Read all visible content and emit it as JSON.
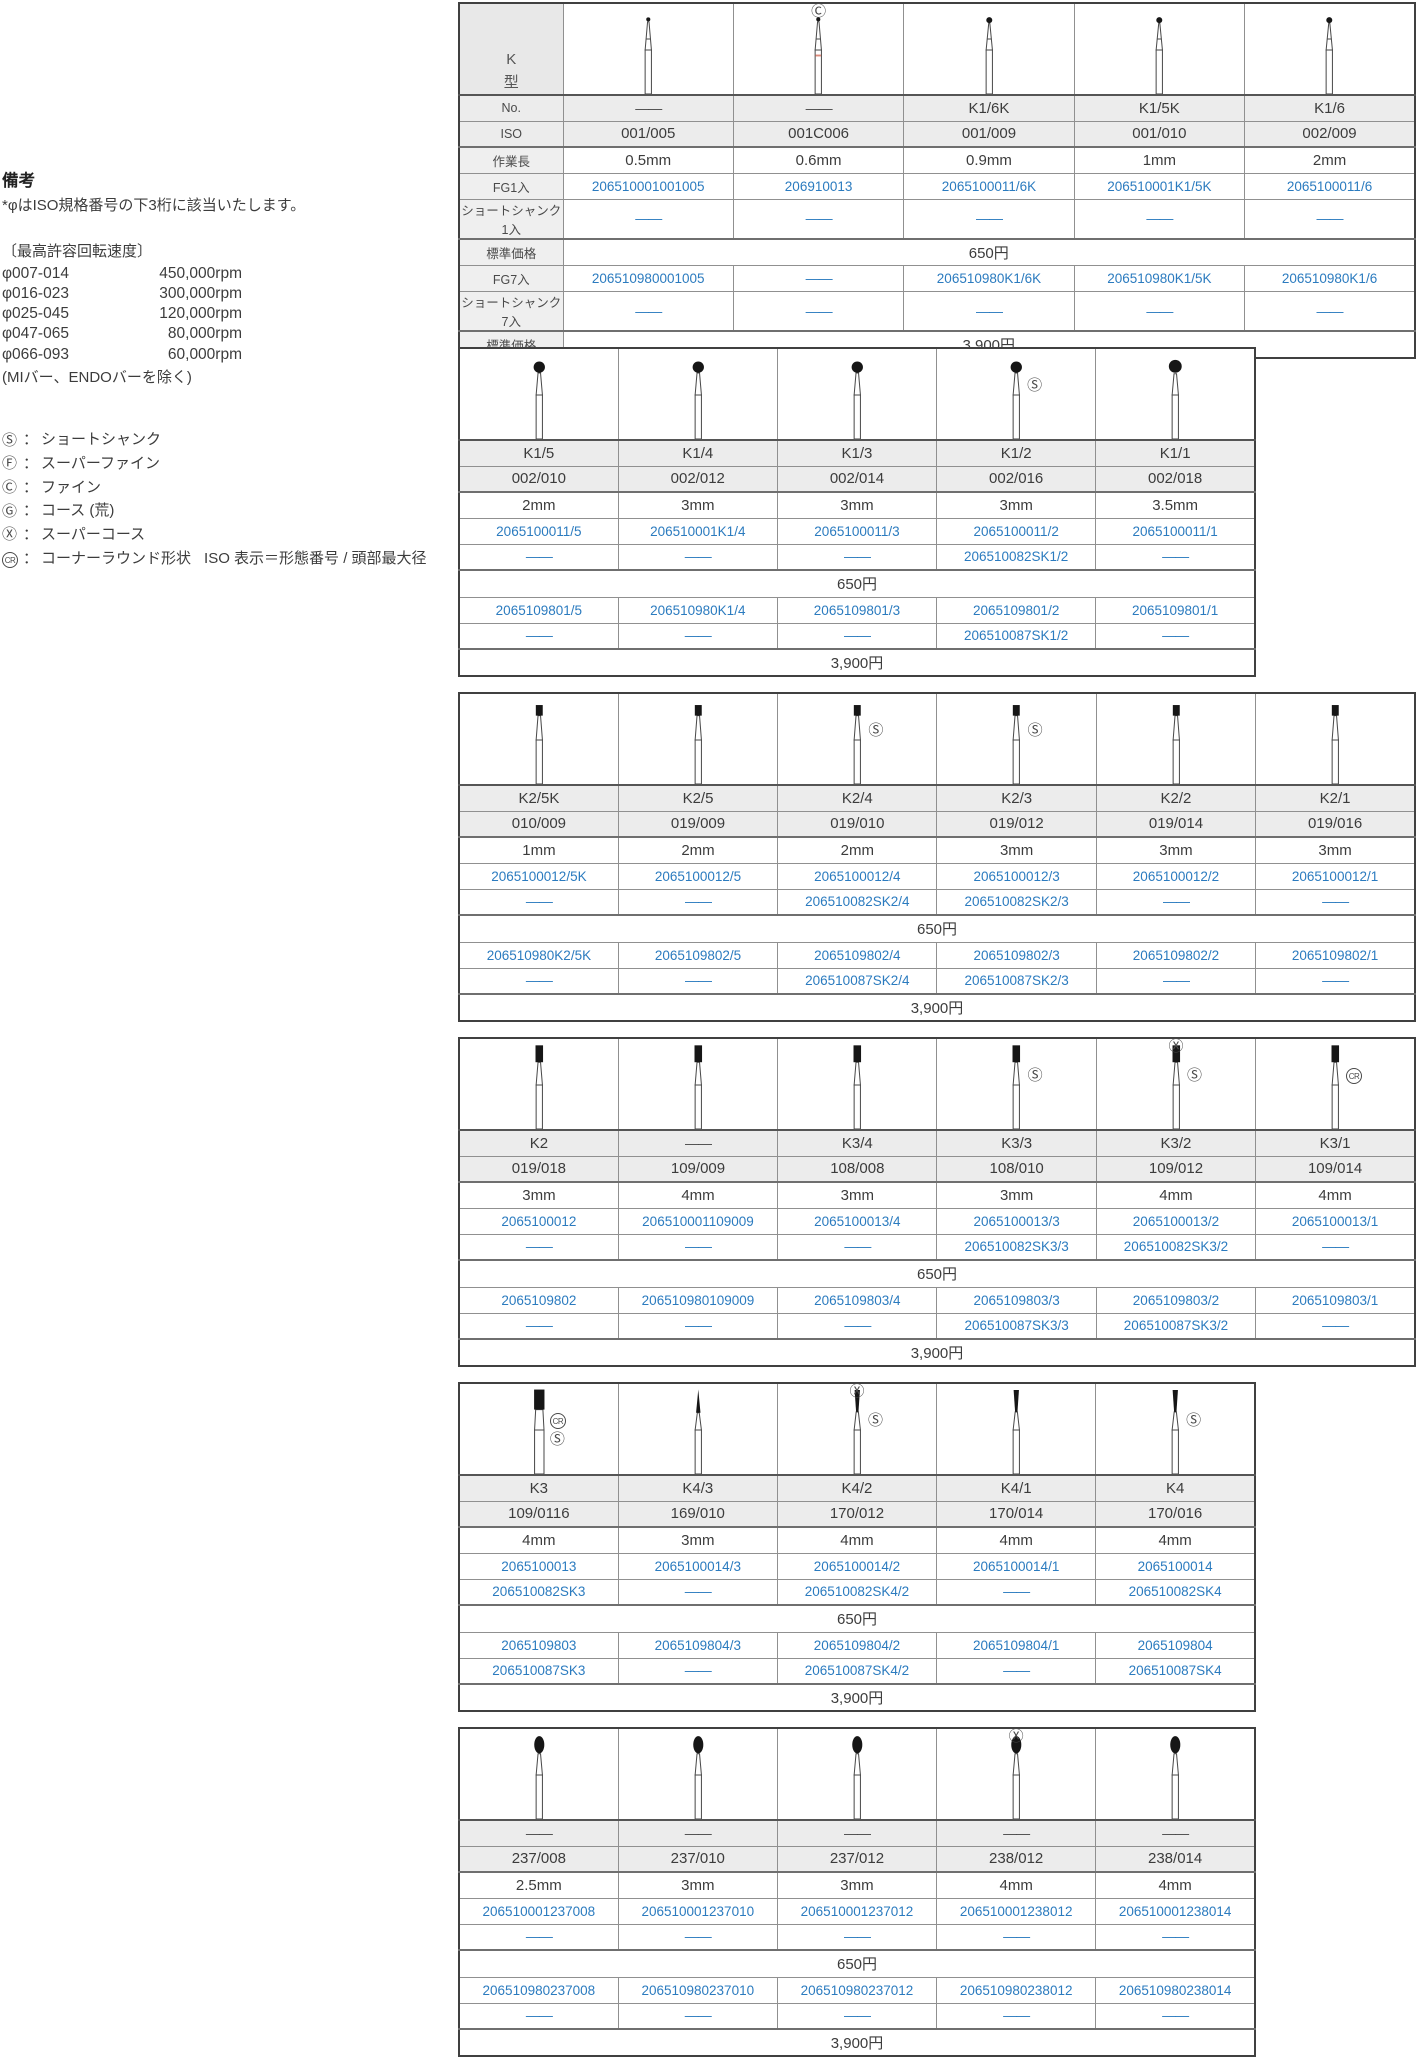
{
  "colors": {
    "link": "#2b7bbf",
    "grid": "#909090",
    "header_bg": "#ececec",
    "label_bg": "#efefef",
    "corner_bg": "#e8e8e8",
    "accent_red": "#dd8a7a",
    "ink": "#3c3c3c"
  },
  "dash": "——",
  "separator": "：",
  "notes": {
    "title": "備考",
    "iso_note": "*φはISO規格番号の下3桁に該当いたします。",
    "speed_title": "〔最高許容回転速度〕",
    "speeds": [
      {
        "range": "φ007-014",
        "rpm": "450,000rpm"
      },
      {
        "range": "φ016-023",
        "rpm": "300,000rpm"
      },
      {
        "range": "φ025-045",
        "rpm": "120,000rpm"
      },
      {
        "range": "φ047-065",
        "rpm": "80,000rpm"
      },
      {
        "range": "φ066-093",
        "rpm": "60,000rpm"
      }
    ],
    "speed_exception": "(MIバー、ENDOバーを除く)",
    "legend": [
      {
        "symbol": "Ⓢ",
        "label": "ショートシャンク"
      },
      {
        "symbol": "Ⓕ",
        "label": "スーパーファイン"
      },
      {
        "symbol": "Ⓒ",
        "label": "ファイン"
      },
      {
        "symbol": "Ⓖ",
        "label": "コース (荒)"
      },
      {
        "symbol": "Ⓧ",
        "label": "スーパーコース"
      },
      {
        "symbol": "CR",
        "label": "コーナーラウンド形状",
        "extra": "ISO 表示＝形態番号 / 頭部最大径"
      }
    ]
  },
  "series_label": {
    "line1": "K",
    "line2": "型"
  },
  "row_labels": {
    "no": "No.",
    "iso": "ISO",
    "length": "作業長",
    "fg1": "FG1入",
    "ss1": "ショートシャンク 1入",
    "price": "標準価格",
    "fg7": "FG7入",
    "ss7": "ショートシャンク 7入"
  },
  "prices": {
    "single": "650円",
    "seven": "3,900円"
  },
  "tables": [
    {
      "columns": [
        {
          "no": "——",
          "iso": "001/005",
          "length": "0.5mm",
          "fg1": "206510001001005",
          "ss1": "——",
          "fg7": "206510980001005",
          "ss7": "——",
          "bur": "micro"
        },
        {
          "no": "——",
          "iso": "001C006",
          "length": "0.6mm",
          "fg1": "206910013",
          "ss1": "——",
          "fg7": "——",
          "ss7": "——",
          "bur": "micro-red",
          "marks_top": "Ⓒ"
        },
        {
          "no": "K1/6K",
          "iso": "001/009",
          "length": "0.9mm",
          "fg1": "2065100011/6K",
          "ss1": "——",
          "fg7": "206510980K1/6K",
          "ss7": "——",
          "bur": "microball"
        },
        {
          "no": "K1/5K",
          "iso": "001/010",
          "length": "1mm",
          "fg1": "206510001K1/5K",
          "ss1": "——",
          "fg7": "206510980K1/5K",
          "ss7": "——",
          "bur": "microball"
        },
        {
          "no": "K1/6",
          "iso": "002/009",
          "length": "2mm",
          "fg1": "2065100011/6",
          "ss1": "——",
          "fg7": "206510980K1/6",
          "ss7": "——",
          "bur": "microball"
        }
      ]
    },
    {
      "columns": [
        {
          "no": "K1/5",
          "iso": "002/010",
          "length": "2mm",
          "fg1": "2065100011/5",
          "ss1": "——",
          "fg7": "2065109801/5",
          "ss7": "——",
          "bur": "ball"
        },
        {
          "no": "K1/4",
          "iso": "002/012",
          "length": "3mm",
          "fg1": "206510001K1/4",
          "ss1": "——",
          "fg7": "206510980K1/4",
          "ss7": "——",
          "bur": "ball"
        },
        {
          "no": "K1/3",
          "iso": "002/014",
          "length": "3mm",
          "fg1": "2065100011/3",
          "ss1": "——",
          "fg7": "2065109801/3",
          "ss7": "——",
          "bur": "ball"
        },
        {
          "no": "K1/2",
          "iso": "002/016",
          "length": "3mm",
          "fg1": "2065100011/2",
          "ss1": "206510082SK1/2",
          "fg7": "2065109801/2",
          "ss7": "206510087SK1/2",
          "bur": "ball",
          "marks_side": [
            "Ⓢ"
          ]
        },
        {
          "no": "K1/1",
          "iso": "002/018",
          "length": "3.5mm",
          "fg1": "2065100011/1",
          "ss1": "——",
          "fg7": "2065109801/1",
          "ss7": "——",
          "bur": "ball-l"
        }
      ]
    },
    {
      "columns": [
        {
          "no": "K2/5K",
          "iso": "010/009",
          "length": "1mm",
          "fg1": "2065100012/5K",
          "ss1": "——",
          "fg7": "206510980K2/5K",
          "ss7": "——",
          "bur": "cyl-s"
        },
        {
          "no": "K2/5",
          "iso": "019/009",
          "length": "2mm",
          "fg1": "2065100012/5",
          "ss1": "——",
          "fg7": "2065109802/5",
          "ss7": "——",
          "bur": "cyl-s"
        },
        {
          "no": "K2/4",
          "iso": "019/010",
          "length": "2mm",
          "fg1": "2065100012/4",
          "ss1": "206510082SK2/4",
          "fg7": "2065109802/4",
          "ss7": "206510087SK2/4",
          "bur": "cyl-s",
          "marks_side": [
            "Ⓢ"
          ]
        },
        {
          "no": "K2/3",
          "iso": "019/012",
          "length": "3mm",
          "fg1": "2065100012/3",
          "ss1": "206510082SK2/3",
          "fg7": "2065109802/3",
          "ss7": "206510087SK2/3",
          "bur": "cyl-s",
          "marks_side": [
            "Ⓢ"
          ]
        },
        {
          "no": "K2/2",
          "iso": "019/014",
          "length": "3mm",
          "fg1": "2065100012/2",
          "ss1": "——",
          "fg7": "2065109802/2",
          "ss7": "——",
          "bur": "cyl-s"
        },
        {
          "no": "K2/1",
          "iso": "019/016",
          "length": "3mm",
          "fg1": "2065100012/1",
          "ss1": "——",
          "fg7": "2065109802/1",
          "ss7": "——",
          "bur": "cyl-s"
        }
      ]
    },
    {
      "columns": [
        {
          "no": "K2",
          "iso": "019/018",
          "length": "3mm",
          "fg1": "2065100012",
          "ss1": "——",
          "fg7": "2065109802",
          "ss7": "——",
          "bur": "cyl"
        },
        {
          "no": "——",
          "iso": "109/009",
          "length": "4mm",
          "fg1": "206510001109009",
          "ss1": "——",
          "fg7": "206510980109009",
          "ss7": "——",
          "bur": "cyl"
        },
        {
          "no": "K3/4",
          "iso": "108/008",
          "length": "3mm",
          "fg1": "2065100013/4",
          "ss1": "——",
          "fg7": "2065109803/4",
          "ss7": "——",
          "bur": "cyl"
        },
        {
          "no": "K3/3",
          "iso": "108/010",
          "length": "3mm",
          "fg1": "2065100013/3",
          "ss1": "206510082SK3/3",
          "fg7": "2065109803/3",
          "ss7": "206510087SK3/3",
          "bur": "cyl",
          "marks_side": [
            "Ⓢ"
          ]
        },
        {
          "no": "K3/2",
          "iso": "109/012",
          "length": "4mm",
          "fg1": "2065100013/2",
          "ss1": "206510082SK3/2",
          "fg7": "2065109803/2",
          "ss7": "206510087SK3/2",
          "bur": "cyl",
          "marks_top": "Ⓧ",
          "marks_side": [
            "Ⓢ"
          ]
        },
        {
          "no": "K3/1",
          "iso": "109/014",
          "length": "4mm",
          "fg1": "2065100013/1",
          "ss1": "——",
          "fg7": "2065109803/1",
          "ss7": "——",
          "bur": "cyl",
          "marks_side": [
            "CR"
          ]
        }
      ]
    },
    {
      "columns": [
        {
          "no": "K3",
          "iso": "109/0116",
          "length": "4mm",
          "fg1": "2065100013",
          "ss1": "206510082SK3",
          "fg7": "2065109803",
          "ss7": "206510087SK3",
          "bur": "cyl-xl",
          "marks_side": [
            "CR",
            "Ⓢ"
          ]
        },
        {
          "no": "K4/3",
          "iso": "169/010",
          "length": "3mm",
          "fg1": "2065100014/3",
          "ss1": "——",
          "fg7": "2065109804/3",
          "ss7": "——",
          "bur": "needle"
        },
        {
          "no": "K4/2",
          "iso": "170/012",
          "length": "4mm",
          "fg1": "2065100014/2",
          "ss1": "206510082SK4/2",
          "fg7": "2065109804/2",
          "ss7": "206510087SK4/2",
          "bur": "taper",
          "marks_top": "Ⓧ",
          "marks_side": [
            "Ⓢ"
          ]
        },
        {
          "no": "K4/1",
          "iso": "170/014",
          "length": "4mm",
          "fg1": "2065100014/1",
          "ss1": "——",
          "fg7": "2065109804/1",
          "ss7": "——",
          "bur": "taper"
        },
        {
          "no": "K4",
          "iso": "170/016",
          "length": "4mm",
          "fg1": "2065100014",
          "ss1": "206510082SK4",
          "fg7": "2065109804",
          "ss7": "206510087SK4",
          "bur": "taper",
          "marks_side": [
            "Ⓢ"
          ]
        }
      ]
    },
    {
      "columns": [
        {
          "no": "——",
          "iso": "237/008",
          "length": "2.5mm",
          "fg1": "206510001237008",
          "ss1": "——",
          "fg7": "206510980237008",
          "ss7": "——",
          "bur": "egg"
        },
        {
          "no": "——",
          "iso": "237/010",
          "length": "3mm",
          "fg1": "206510001237010",
          "ss1": "——",
          "fg7": "206510980237010",
          "ss7": "——",
          "bur": "egg"
        },
        {
          "no": "——",
          "iso": "237/012",
          "length": "3mm",
          "fg1": "206510001237012",
          "ss1": "——",
          "fg7": "206510980237012",
          "ss7": "——",
          "bur": "egg"
        },
        {
          "no": "——",
          "iso": "238/012",
          "length": "4mm",
          "fg1": "206510001238012",
          "ss1": "——",
          "fg7": "206510980238012",
          "ss7": "——",
          "bur": "egg",
          "marks_top": "Ⓧ"
        },
        {
          "no": "——",
          "iso": "238/014",
          "length": "4mm",
          "fg1": "206510001238014",
          "ss1": "——",
          "fg7": "206510980238014",
          "ss7": "——",
          "bur": "egg"
        }
      ]
    }
  ]
}
